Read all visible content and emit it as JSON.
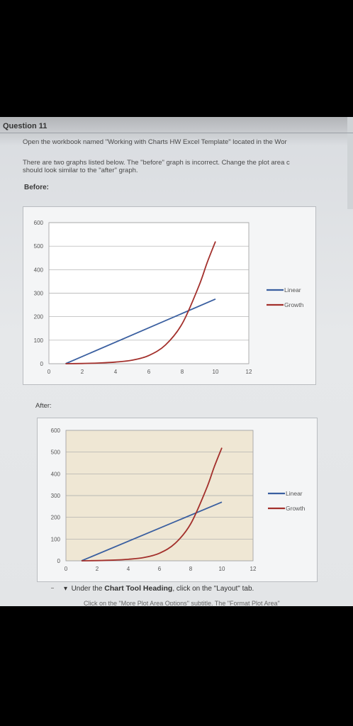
{
  "question": {
    "title": "Question 11",
    "line1": "Open the workbook named \"Working with Charts HW Excel Template\" located in the Wor",
    "line2": "There are two graphs listed below. The \"before\" graph is incorrect. Change the plot area c",
    "line3": "should look similar to the \"after\" graph.",
    "before_label": "Before:",
    "after_label": "After:",
    "bullet_pre": "Under the ",
    "bullet_bold": "Chart Tool Heading",
    "bullet_post": ", click on the \"Layout\" tab.",
    "cut_line": "Click on the \"More Plot Area Options\" subtitle. The \"Format Plot Area\""
  },
  "colors": {
    "linear": "#3a5fa0",
    "growth": "#a3302c",
    "after_plot_bg": "#efe7d4"
  },
  "chart_data": [
    {
      "type": "line",
      "name": "before",
      "x_ticks": [
        "0",
        "2",
        "4",
        "6",
        "8",
        "10",
        "12"
      ],
      "y_ticks": [
        "0",
        "100",
        "200",
        "300",
        "400",
        "500",
        "600"
      ],
      "xlim": [
        0,
        12
      ],
      "ylim": [
        0,
        600
      ],
      "legend": "right",
      "grid": true,
      "plot_background": "white",
      "series": [
        {
          "name": "Linear",
          "points": [
            [
              1,
              0
            ],
            [
              10,
              275
            ]
          ]
        },
        {
          "name": "Growth",
          "points": [
            [
              1,
              0
            ],
            [
              2,
              1
            ],
            [
              3,
              3
            ],
            [
              4,
              7
            ],
            [
              5,
              15
            ],
            [
              6,
              35
            ],
            [
              7,
              80
            ],
            [
              8,
              170
            ],
            [
              9,
              330
            ],
            [
              9.5,
              430
            ],
            [
              10,
              520
            ]
          ]
        }
      ]
    },
    {
      "type": "line",
      "name": "after",
      "x_ticks": [
        "0",
        "2",
        "4",
        "6",
        "8",
        "10",
        "12"
      ],
      "y_ticks": [
        "0",
        "100",
        "200",
        "300",
        "400",
        "500",
        "600"
      ],
      "xlim": [
        0,
        12
      ],
      "ylim": [
        0,
        600
      ],
      "legend": "right",
      "grid": true,
      "plot_background": "tan",
      "series": [
        {
          "name": "Linear",
          "points": [
            [
              1,
              0
            ],
            [
              10,
              270
            ]
          ]
        },
        {
          "name": "Growth",
          "points": [
            [
              1,
              0
            ],
            [
              2,
              1
            ],
            [
              3,
              3
            ],
            [
              4,
              7
            ],
            [
              5,
              15
            ],
            [
              6,
              35
            ],
            [
              7,
              80
            ],
            [
              8,
              170
            ],
            [
              9,
              330
            ],
            [
              9.5,
              430
            ],
            [
              10,
              520
            ]
          ]
        }
      ]
    }
  ]
}
